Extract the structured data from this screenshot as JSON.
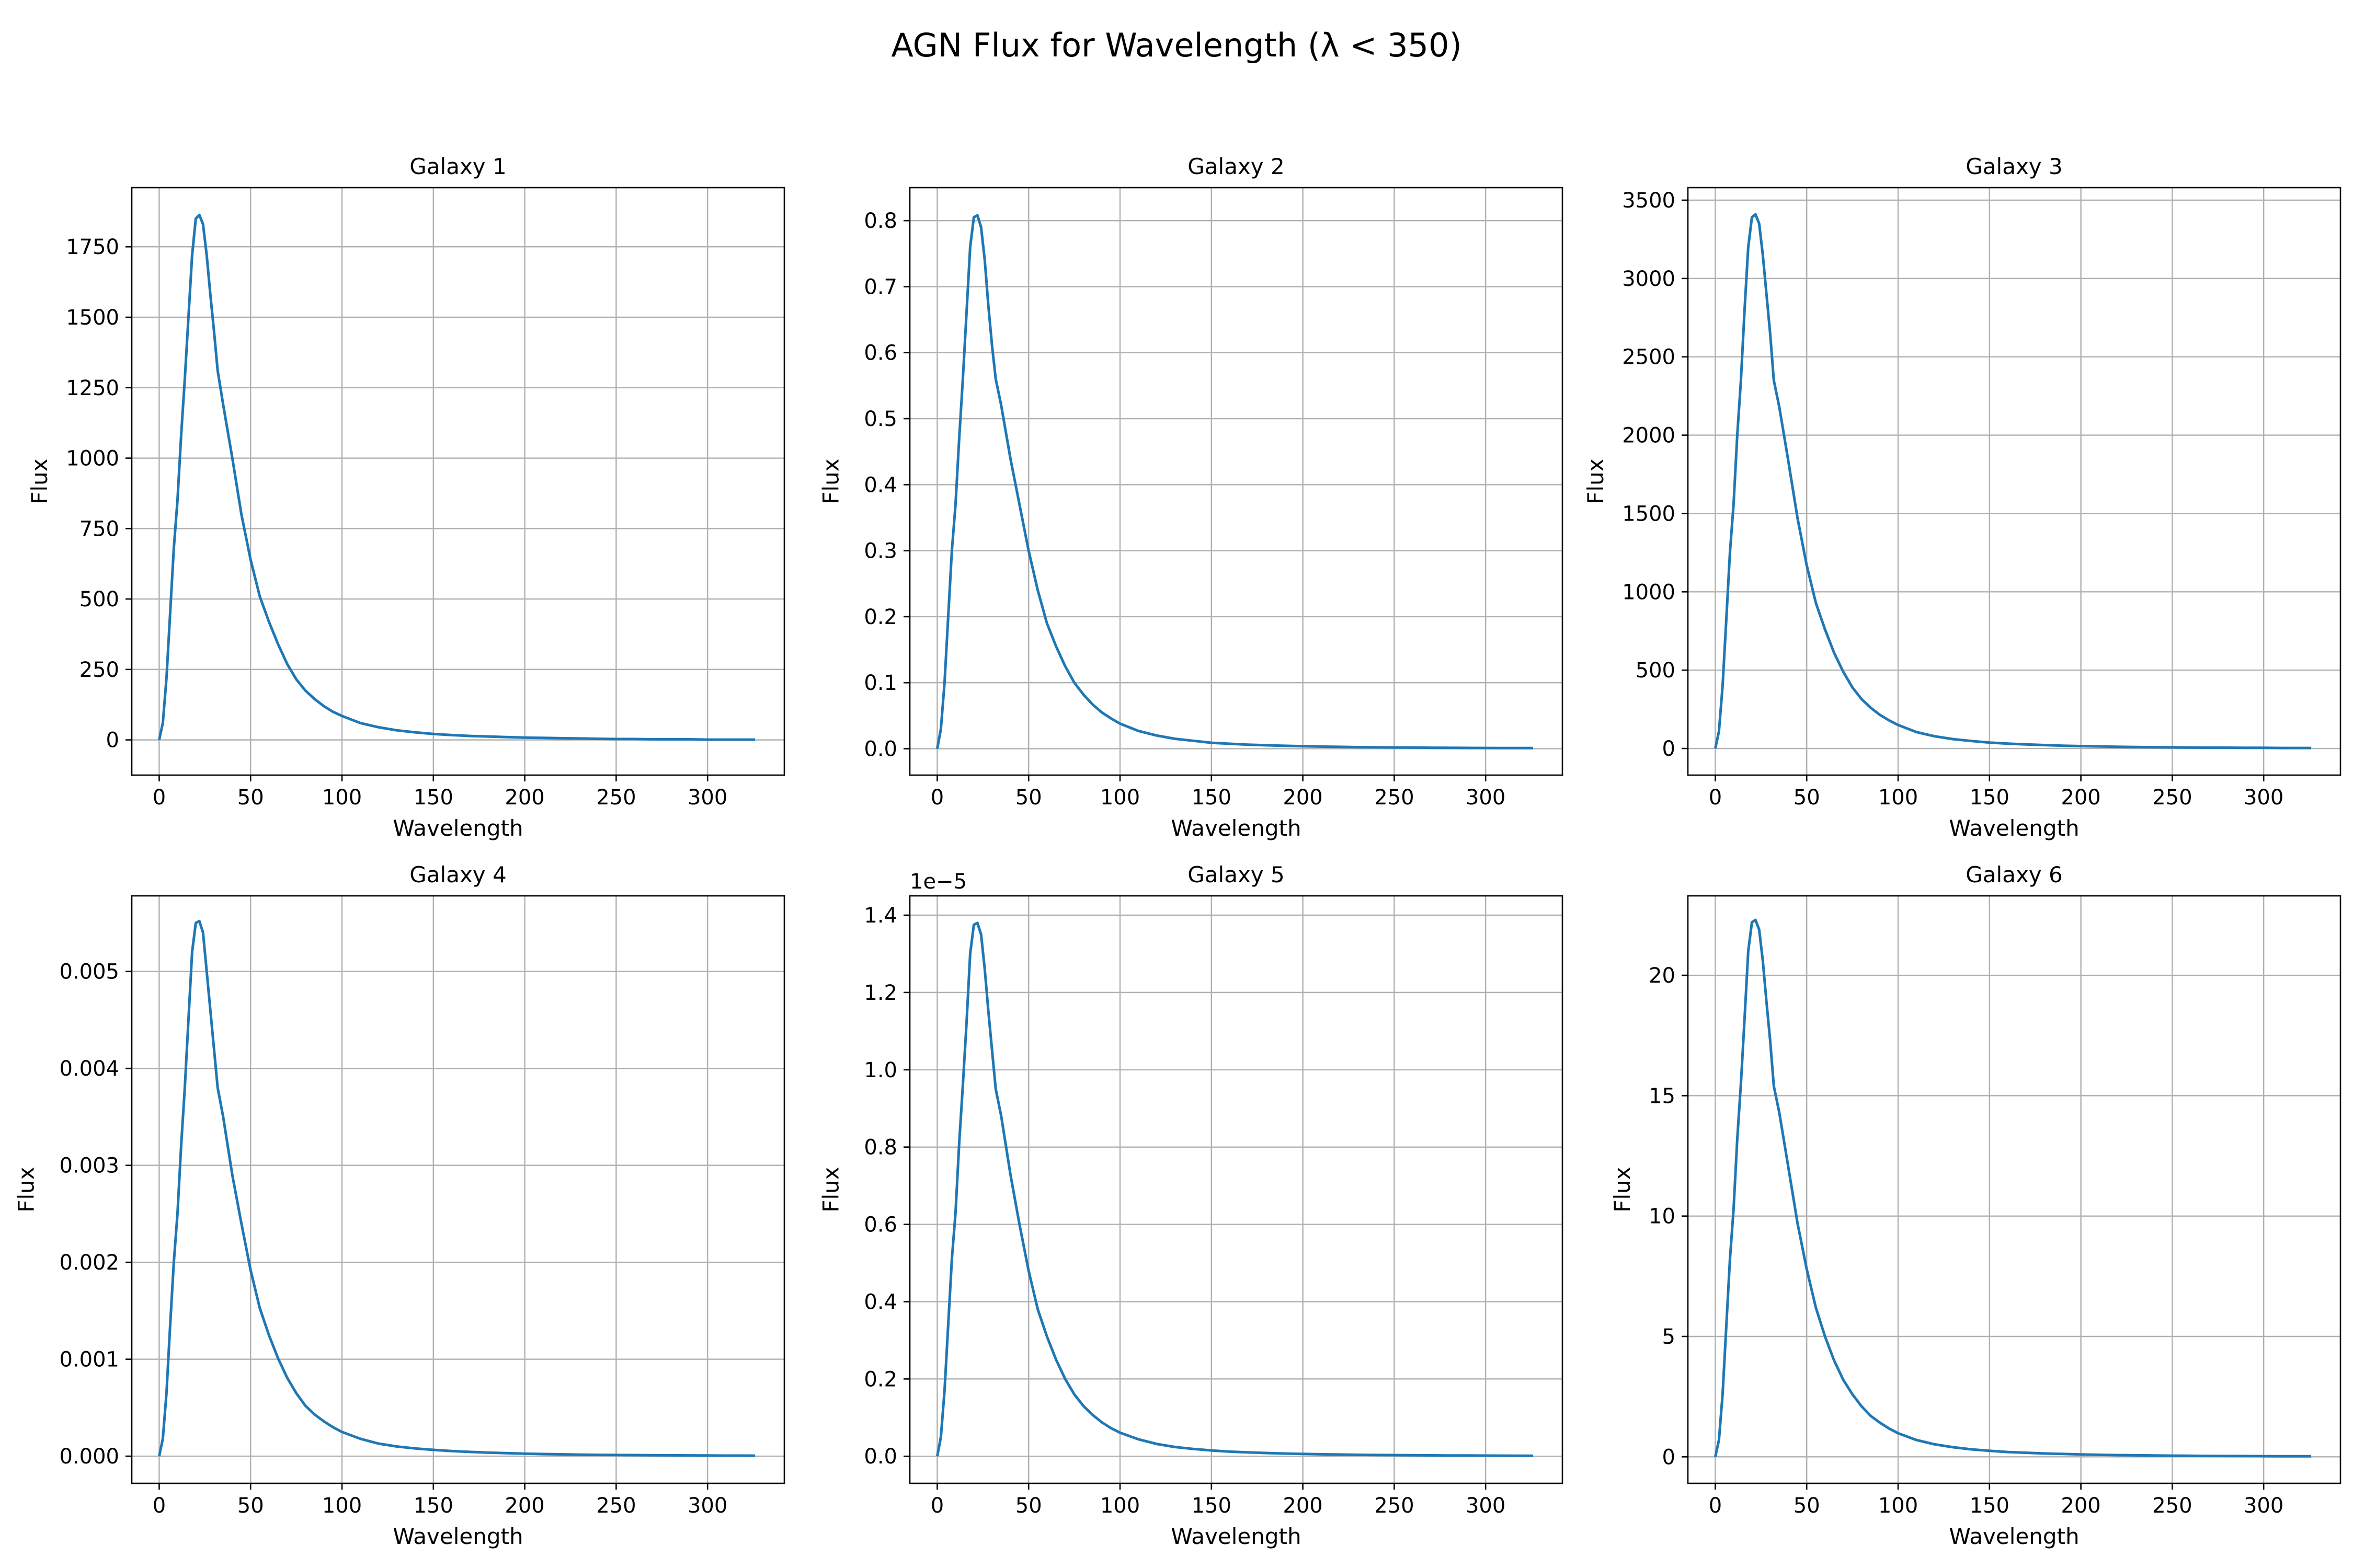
{
  "suptitle": "AGN Flux for Wavelength (λ < 350)",
  "line_color": "#1f77b4",
  "chart_data": [
    {
      "type": "line",
      "title": "Galaxy 1",
      "xlabel": "Wavelength",
      "ylabel": "Flux",
      "xlim": [
        -15,
        342
      ],
      "ylim": [
        -125,
        1960
      ],
      "xticks": [
        0,
        50,
        100,
        150,
        200,
        250,
        300
      ],
      "yticks": [
        0,
        250,
        500,
        750,
        1000,
        1250,
        1500,
        1750
      ],
      "ytick_labels": [
        "0",
        "250",
        "500",
        "750",
        "1000",
        "1250",
        "1500",
        "1750"
      ],
      "offset_text": "",
      "grid": true,
      "series": [
        {
          "x": [
            0,
            2,
            4,
            6,
            8,
            10,
            12,
            14,
            16,
            18,
            20,
            22,
            24,
            26,
            28,
            30,
            32,
            35,
            40,
            45,
            50,
            55,
            60,
            65,
            70,
            75,
            80,
            85,
            90,
            95,
            100,
            110,
            120,
            130,
            140,
            150,
            160,
            170,
            180,
            190,
            200,
            210,
            220,
            230,
            240,
            250,
            260,
            270,
            280,
            290,
            300,
            310,
            320,
            326
          ],
          "y": [
            0,
            60,
            220,
            450,
            680,
            850,
            1080,
            1280,
            1500,
            1720,
            1850,
            1863,
            1830,
            1720,
            1580,
            1450,
            1310,
            1190,
            1000,
            800,
            640,
            510,
            420,
            340,
            270,
            215,
            175,
            145,
            120,
            100,
            85,
            60,
            45,
            34,
            27,
            21,
            17,
            14,
            12,
            10,
            8,
            7,
            6,
            5,
            4,
            3,
            3,
            2,
            2,
            2,
            1,
            1,
            1,
            1
          ]
        }
      ]
    },
    {
      "type": "line",
      "title": "Galaxy 2",
      "xlabel": "Wavelength",
      "ylabel": "Flux",
      "xlim": [
        -15,
        342
      ],
      "ylim": [
        -0.04,
        0.85
      ],
      "xticks": [
        0,
        50,
        100,
        150,
        200,
        250,
        300
      ],
      "yticks": [
        0,
        0.1,
        0.2,
        0.3,
        0.4,
        0.5,
        0.6,
        0.7,
        0.8
      ],
      "ytick_labels": [
        "0.0",
        "0.1",
        "0.2",
        "0.3",
        "0.4",
        "0.5",
        "0.6",
        "0.7",
        "0.8"
      ],
      "offset_text": "",
      "grid": true,
      "series": [
        {
          "x": [
            0,
            2,
            4,
            6,
            8,
            10,
            12,
            14,
            16,
            18,
            20,
            22,
            24,
            26,
            28,
            30,
            32,
            35,
            40,
            45,
            50,
            55,
            60,
            65,
            70,
            75,
            80,
            85,
            90,
            95,
            100,
            110,
            120,
            130,
            140,
            150,
            160,
            170,
            180,
            190,
            200,
            210,
            220,
            230,
            240,
            250,
            260,
            270,
            280,
            290,
            300,
            310,
            320,
            326
          ],
          "y": [
            0,
            0.03,
            0.1,
            0.2,
            0.3,
            0.37,
            0.47,
            0.56,
            0.66,
            0.76,
            0.805,
            0.808,
            0.79,
            0.74,
            0.67,
            0.61,
            0.56,
            0.52,
            0.44,
            0.37,
            0.3,
            0.24,
            0.19,
            0.155,
            0.125,
            0.1,
            0.082,
            0.067,
            0.055,
            0.046,
            0.038,
            0.027,
            0.02,
            0.015,
            0.012,
            0.009,
            0.0075,
            0.0062,
            0.0052,
            0.0044,
            0.0037,
            0.0032,
            0.0028,
            0.0024,
            0.0021,
            0.0019,
            0.0017,
            0.0015,
            0.0013,
            0.0012,
            0.0011,
            0.001,
            0.0009,
            0.0009
          ]
        }
      ]
    },
    {
      "type": "line",
      "title": "Galaxy 3",
      "xlabel": "Wavelength",
      "ylabel": "Flux",
      "xlim": [
        -15,
        342
      ],
      "ylim": [
        -170,
        3580
      ],
      "xticks": [
        0,
        50,
        100,
        150,
        200,
        250,
        300
      ],
      "yticks": [
        0,
        500,
        1000,
        1500,
        2000,
        2500,
        3000,
        3500
      ],
      "ytick_labels": [
        "0",
        "500",
        "1000",
        "1500",
        "2000",
        "2500",
        "3000",
        "3500"
      ],
      "offset_text": "",
      "grid": true,
      "series": [
        {
          "x": [
            0,
            2,
            4,
            6,
            8,
            10,
            12,
            14,
            16,
            18,
            20,
            22,
            24,
            26,
            28,
            30,
            32,
            35,
            40,
            45,
            50,
            55,
            60,
            65,
            70,
            75,
            80,
            85,
            90,
            95,
            100,
            110,
            120,
            130,
            140,
            150,
            160,
            170,
            180,
            190,
            200,
            210,
            220,
            230,
            240,
            250,
            260,
            270,
            280,
            290,
            300,
            310,
            320,
            326
          ],
          "y": [
            0,
            110,
            400,
            820,
            1250,
            1560,
            2000,
            2350,
            2800,
            3200,
            3390,
            3410,
            3350,
            3150,
            2900,
            2650,
            2350,
            2180,
            1830,
            1470,
            1170,
            930,
            760,
            610,
            490,
            390,
            315,
            260,
            215,
            180,
            150,
            105,
            78,
            60,
            48,
            38,
            31,
            26,
            22,
            18,
            15,
            13,
            11,
            9,
            8,
            7,
            6,
            5,
            5,
            4,
            4,
            3,
            3,
            3
          ]
        }
      ]
    },
    {
      "type": "line",
      "title": "Galaxy 4",
      "xlabel": "Wavelength",
      "ylabel": "Flux",
      "xlim": [
        -15,
        342
      ],
      "ylim": [
        -0.00028,
        0.00578
      ],
      "xticks": [
        0,
        50,
        100,
        150,
        200,
        250,
        300
      ],
      "yticks": [
        0,
        0.001,
        0.002,
        0.003,
        0.004,
        0.005
      ],
      "ytick_labels": [
        "0.000",
        "0.001",
        "0.002",
        "0.003",
        "0.004",
        "0.005"
      ],
      "offset_text": "",
      "grid": true,
      "series": [
        {
          "x": [
            0,
            2,
            4,
            6,
            8,
            10,
            12,
            14,
            16,
            18,
            20,
            22,
            24,
            26,
            28,
            30,
            32,
            35,
            40,
            45,
            50,
            55,
            60,
            65,
            70,
            75,
            80,
            85,
            90,
            95,
            100,
            110,
            120,
            130,
            140,
            150,
            160,
            170,
            180,
            190,
            200,
            210,
            220,
            230,
            240,
            250,
            260,
            270,
            280,
            290,
            300,
            310,
            320,
            326
          ],
          "y": [
            0,
            0.00018,
            0.00065,
            0.00135,
            0.002,
            0.0025,
            0.0032,
            0.0038,
            0.0045,
            0.0052,
            0.0055,
            0.00552,
            0.0054,
            0.005,
            0.0046,
            0.0042,
            0.0038,
            0.0035,
            0.0029,
            0.0024,
            0.00192,
            0.00153,
            0.00125,
            0.00101,
            0.00081,
            0.00065,
            0.00052,
            0.00043,
            0.00036,
            0.0003,
            0.00025,
            0.00018,
            0.00013,
            0.0001,
            8e-05,
            6.5e-05,
            5.3e-05,
            4.4e-05,
            3.7e-05,
            3.1e-05,
            2.6e-05,
            2.2e-05,
            1.9e-05,
            1.6e-05,
            1.4e-05,
            1.2e-05,
            1.1e-05,
            1e-05,
            9e-06,
            8e-06,
            7e-06,
            6e-06,
            6e-06,
            5e-06
          ]
        }
      ]
    },
    {
      "type": "line",
      "title": "Galaxy 5",
      "xlabel": "Wavelength",
      "ylabel": "Flux",
      "xlim": [
        -15,
        342
      ],
      "ylim": [
        -0.07,
        1.45
      ],
      "xticks": [
        0,
        50,
        100,
        150,
        200,
        250,
        300
      ],
      "yticks": [
        0,
        0.2,
        0.4,
        0.6,
        0.8,
        1.0,
        1.2,
        1.4
      ],
      "ytick_labels": [
        "0.0",
        "0.2",
        "0.4",
        "0.6",
        "0.8",
        "1.0",
        "1.2",
        "1.4"
      ],
      "offset_text": "1e−5",
      "grid": true,
      "series": [
        {
          "x": [
            0,
            2,
            4,
            6,
            8,
            10,
            12,
            14,
            16,
            18,
            20,
            22,
            24,
            26,
            28,
            30,
            32,
            35,
            40,
            45,
            50,
            55,
            60,
            65,
            70,
            75,
            80,
            85,
            90,
            95,
            100,
            110,
            120,
            130,
            140,
            150,
            160,
            170,
            180,
            190,
            200,
            210,
            220,
            230,
            240,
            250,
            260,
            270,
            280,
            290,
            300,
            310,
            320,
            326
          ],
          "y": [
            0,
            0.05,
            0.17,
            0.34,
            0.51,
            0.63,
            0.81,
            0.96,
            1.12,
            1.3,
            1.375,
            1.38,
            1.35,
            1.26,
            1.15,
            1.05,
            0.95,
            0.88,
            0.73,
            0.6,
            0.48,
            0.38,
            0.31,
            0.25,
            0.2,
            0.16,
            0.13,
            0.107,
            0.088,
            0.073,
            0.061,
            0.044,
            0.032,
            0.024,
            0.019,
            0.015,
            0.012,
            0.01,
            0.0084,
            0.0071,
            0.006,
            0.0052,
            0.0045,
            0.0039,
            0.0034,
            0.003,
            0.0027,
            0.0024,
            0.0021,
            0.0019,
            0.0017,
            0.0016,
            0.0014,
            0.0014
          ]
        }
      ]
    },
    {
      "type": "line",
      "title": "Galaxy 6",
      "xlabel": "Wavelength",
      "ylabel": "Flux",
      "xlim": [
        -15,
        342
      ],
      "ylim": [
        -1.1,
        23.3
      ],
      "xticks": [
        0,
        50,
        100,
        150,
        200,
        250,
        300
      ],
      "yticks": [
        0,
        5,
        10,
        15,
        20
      ],
      "ytick_labels": [
        "0",
        "5",
        "10",
        "15",
        "20"
      ],
      "offset_text": "",
      "grid": true,
      "series": [
        {
          "x": [
            0,
            2,
            4,
            6,
            8,
            10,
            12,
            14,
            16,
            18,
            20,
            22,
            24,
            26,
            28,
            30,
            32,
            35,
            40,
            45,
            50,
            55,
            60,
            65,
            70,
            75,
            80,
            85,
            90,
            95,
            100,
            110,
            120,
            130,
            140,
            150,
            160,
            170,
            180,
            190,
            200,
            210,
            220,
            230,
            240,
            250,
            260,
            270,
            280,
            290,
            300,
            310,
            320,
            326
          ],
          "y": [
            0,
            0.7,
            2.6,
            5.4,
            8.2,
            10.3,
            13.2,
            15.5,
            18.2,
            21,
            22.2,
            22.3,
            21.9,
            20.6,
            18.9,
            17.3,
            15.4,
            14.3,
            12,
            9.7,
            7.8,
            6.2,
            5,
            4,
            3.2,
            2.6,
            2.1,
            1.7,
            1.42,
            1.18,
            0.98,
            0.7,
            0.52,
            0.4,
            0.31,
            0.25,
            0.2,
            0.17,
            0.14,
            0.12,
            0.1,
            0.085,
            0.073,
            0.063,
            0.055,
            0.048,
            0.043,
            0.038,
            0.034,
            0.03,
            0.027,
            0.025,
            0.023,
            0.022
          ]
        }
      ]
    }
  ]
}
